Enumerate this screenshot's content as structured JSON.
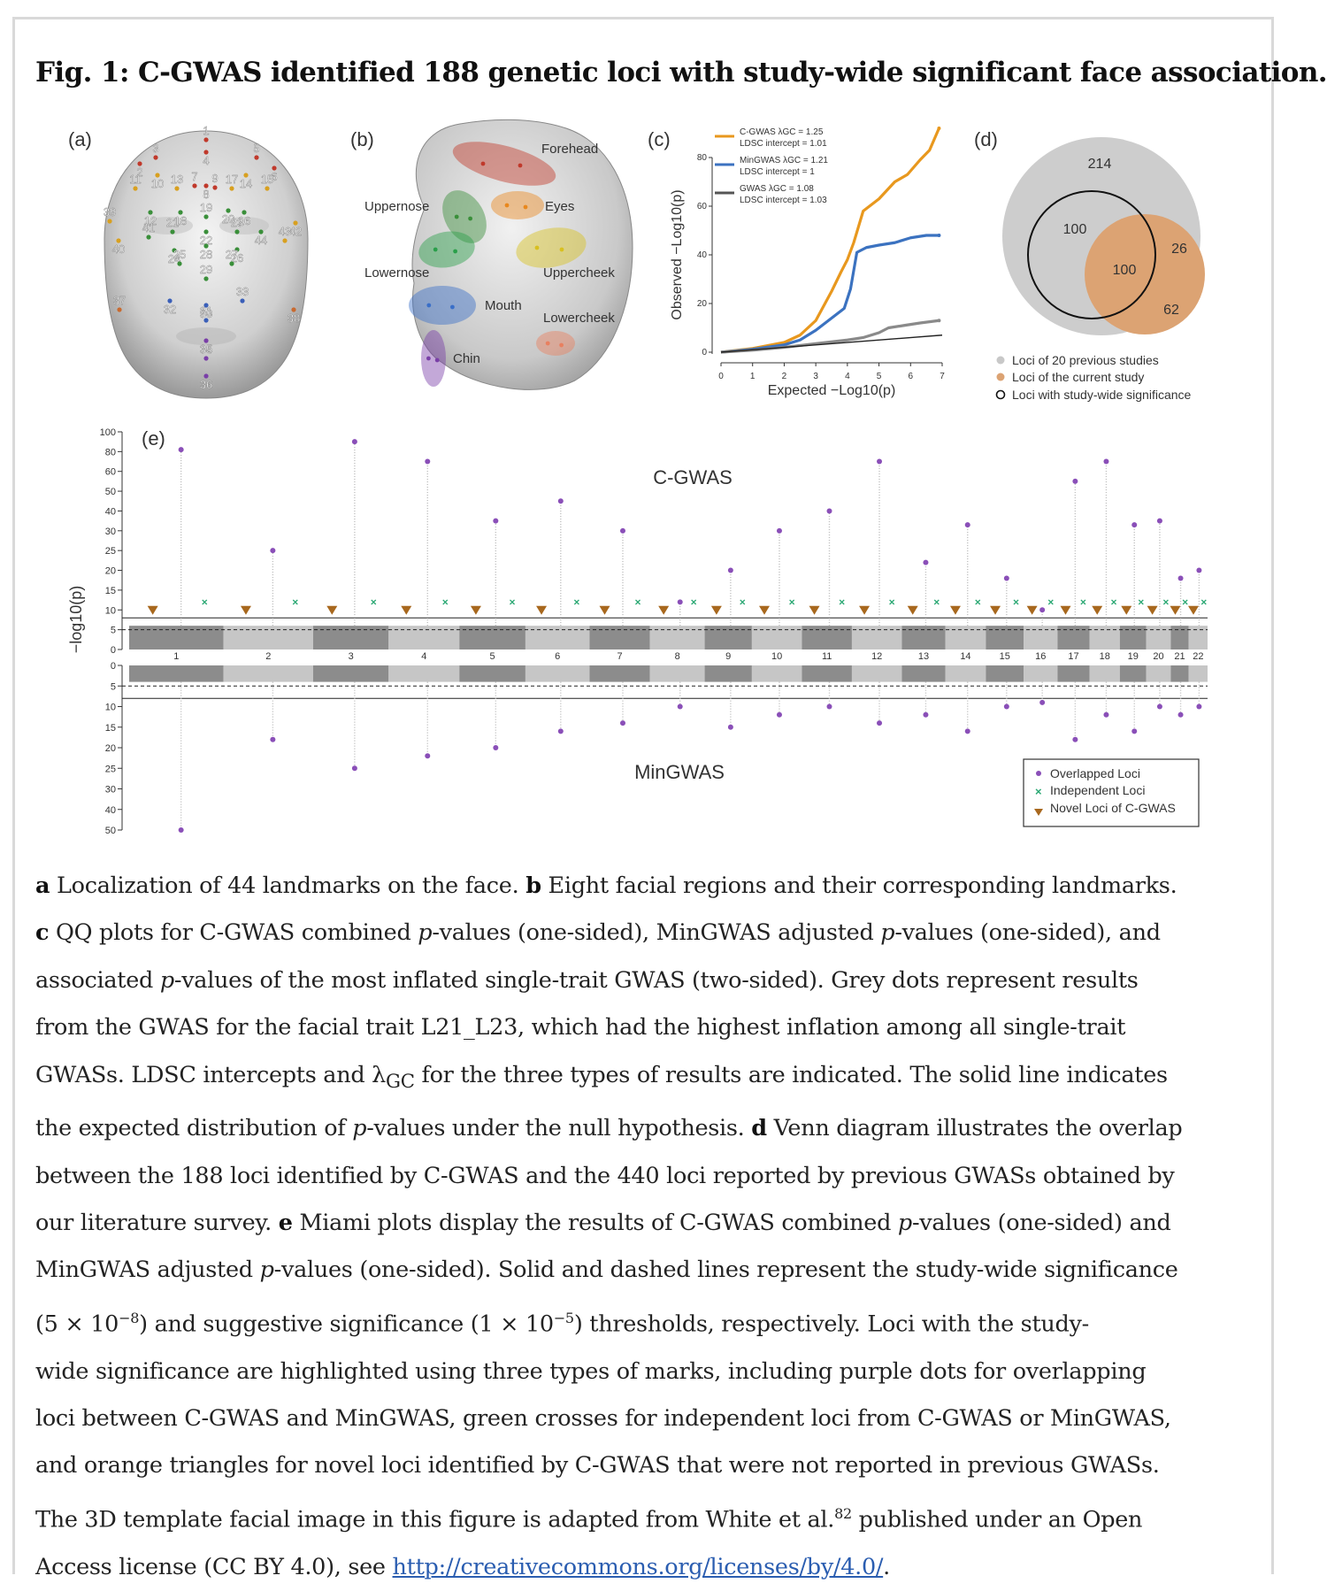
{
  "figure": {
    "title": "Fig. 1: C-GWAS identified 188 genetic loci with study-wide significant face association.",
    "panels": {
      "a": {
        "label": "(a)",
        "landmark_numbers": [
          "1",
          "2",
          "3",
          "4",
          "5",
          "6",
          "7",
          "8",
          "9",
          "10",
          "11",
          "12",
          "13",
          "14",
          "15",
          "16",
          "17",
          "18",
          "19",
          "20",
          "21",
          "22",
          "23",
          "24",
          "25",
          "26",
          "27",
          "28",
          "29",
          "30",
          "31",
          "32",
          "33",
          "34",
          "35",
          "36",
          "37",
          "38",
          "39",
          "40",
          "41",
          "42",
          "43",
          "44"
        ]
      },
      "b": {
        "label": "(b)",
        "regions": [
          "Forehead",
          "Eyes",
          "Uppernose",
          "Lowernose",
          "Uppercheek",
          "Mouth",
          "Lowercheek",
          "Chin"
        ]
      },
      "c": {
        "label": "(c)"
      },
      "d": {
        "label": "(d)",
        "counts": {
          "previous_only": "214",
          "overlap_prev_sig": "100",
          "overlap_all": "100",
          "current_sig_only": "26",
          "current_only": "62"
        },
        "legend": [
          "Loci of 20 previous studies",
          "Loci of the current study",
          "Loci with study-wide significance"
        ]
      },
      "e": {
        "label": "(e)",
        "top_title": "C-GWAS",
        "bottom_title": "MinGWAS",
        "ylabel": "−log10(p)",
        "top_ticks": [
          "100",
          "80",
          "60",
          "50",
          "40",
          "30",
          "25",
          "20",
          "15",
          "10",
          "5",
          "0"
        ],
        "bottom_ticks": [
          "0",
          "5",
          "10",
          "15",
          "20",
          "25",
          "30",
          "40",
          "50"
        ],
        "chromosomes": [
          "1",
          "2",
          "3",
          "4",
          "5",
          "6",
          "7",
          "8",
          "9",
          "10",
          "11",
          "12",
          "13",
          "14",
          "15",
          "16",
          "17",
          "18",
          "19",
          "20",
          "21",
          "22"
        ],
        "legend": [
          "Overlapped Loci",
          "Independent Loci",
          "Novel Loci of C-GWAS"
        ]
      }
    }
  },
  "chart_data": [
    {
      "type": "line",
      "title": "QQ plot",
      "xlabel": "Expected −Log10(p)",
      "ylabel": "Observed −Log10(p)",
      "xlim": [
        0,
        7
      ],
      "ylim": [
        0,
        80
      ],
      "xticks": [
        "0",
        "1",
        "2",
        "3",
        "4",
        "5",
        "6",
        "7"
      ],
      "yticks": [
        "0",
        "20",
        "40",
        "60",
        "80"
      ],
      "legend": [
        {
          "line1": "C-GWAS λGC = 1.25",
          "line2": "LDSC intercept = 1.01",
          "color": "#e8981e"
        },
        {
          "line1": "MinGWAS λGC = 1.21",
          "line2": "LDSC intercept = 1",
          "color": "#3b72c0"
        },
        {
          "line1": "GWAS λGC = 1.08",
          "line2": "LDSC intercept = 1.03",
          "color": "#555555"
        }
      ],
      "series": [
        {
          "name": "C-GWAS",
          "color": "#e8981e",
          "x": [
            0,
            1,
            2,
            2.5,
            3,
            3.5,
            3.8,
            4,
            4.2,
            4.5,
            5,
            5.5,
            5.9,
            6.1,
            6.3,
            6.6,
            6.9
          ],
          "y": [
            0,
            1.5,
            4,
            7,
            13,
            25,
            33,
            38,
            45,
            58,
            63,
            70,
            73,
            76,
            79,
            83,
            92
          ]
        },
        {
          "name": "MinGWAS",
          "color": "#3b72c0",
          "x": [
            0,
            1,
            2,
            2.5,
            3,
            3.5,
            3.9,
            4.1,
            4.3,
            4.6,
            5,
            5.5,
            6,
            6.5,
            6.9
          ],
          "y": [
            0,
            1.2,
            3,
            5,
            9,
            14,
            18,
            26,
            41,
            43,
            44,
            45,
            47,
            48,
            48
          ]
        },
        {
          "name": "GWAS",
          "color": "#8a8a8a",
          "x": [
            0,
            1,
            2,
            3,
            4,
            4.5,
            5,
            5.3,
            5.8,
            6.3,
            6.9
          ],
          "y": [
            0,
            0.8,
            2,
            3.5,
            5,
            6,
            8,
            10,
            11,
            12,
            13
          ]
        },
        {
          "name": "Expected",
          "color": "#222222",
          "x": [
            0,
            7
          ],
          "y": [
            0,
            7
          ]
        }
      ]
    },
    {
      "type": "scatter",
      "title": "Miami plot",
      "categories": [
        "1",
        "2",
        "3",
        "4",
        "5",
        "6",
        "7",
        "8",
        "9",
        "10",
        "11",
        "12",
        "13",
        "14",
        "15",
        "16",
        "17",
        "18",
        "19",
        "20",
        "21",
        "22"
      ],
      "series": [
        {
          "name": "C-GWAS peaks",
          "values": [
            82,
            25,
            90,
            70,
            35,
            45,
            30,
            12,
            20,
            30,
            40,
            70,
            22,
            33,
            18,
            10,
            55,
            70,
            33,
            35,
            18,
            20
          ]
        },
        {
          "name": "MinGWAS peaks",
          "values": [
            50,
            18,
            25,
            22,
            20,
            16,
            14,
            10,
            15,
            12,
            10,
            14,
            12,
            16,
            10,
            9,
            18,
            12,
            16,
            10,
            12,
            10
          ]
        }
      ],
      "thresholds": {
        "study_wide": "5 × 10^-8",
        "suggestive": "1 × 10^-5"
      }
    }
  ],
  "caption": {
    "lines": [
      [
        {
          "b": "a"
        },
        {
          "t": " Localization of 44 landmarks on the face. "
        },
        {
          "b": "b"
        },
        {
          "t": " Eight facial regions and their corresponding landmarks."
        }
      ],
      [
        {
          "b": "c"
        },
        {
          "t": " QQ plots for C-GWAS combined "
        },
        {
          "i": "p"
        },
        {
          "t": "-values (one-sided), MinGWAS adjusted "
        },
        {
          "i": "p"
        },
        {
          "t": "-values (one-sided), and"
        }
      ],
      [
        {
          "t": "associated "
        },
        {
          "i": "p"
        },
        {
          "t": "-values of the most inflated single-trait GWAS (two-sided). Grey dots represent results"
        }
      ],
      [
        {
          "t": "from the GWAS for the facial trait L21_L23, which had the highest inflation among all single-trait"
        }
      ],
      [
        {
          "t": "GWASs. LDSC intercepts and "
        },
        {
          "m": "λ"
        },
        {
          "sub": "GC"
        },
        {
          "t": " for the three types of results are indicated. The solid line indicates"
        }
      ],
      [
        {
          "t": "the expected distribution of "
        },
        {
          "i": "p"
        },
        {
          "t": "-values under the null hypothesis. "
        },
        {
          "b": "d"
        },
        {
          "t": " Venn diagram illustrates the overlap"
        }
      ],
      [
        {
          "t": "between the 188 loci identified by C-GWAS and the 440 loci reported by previous GWASs obtained by"
        }
      ],
      [
        {
          "t": "our literature survey. "
        },
        {
          "b": "e"
        },
        {
          "t": " Miami plots display the results of C-GWAS combined "
        },
        {
          "i": "p"
        },
        {
          "t": "-values (one-sided) and"
        }
      ],
      [
        {
          "t": "MinGWAS adjusted "
        },
        {
          "i": "p"
        },
        {
          "t": "-values (one-sided). Solid and dashed lines represent the study-wide significance"
        }
      ],
      [
        {
          "m": "(5 × 10"
        },
        {
          "sup": "−8"
        },
        {
          "m": ")"
        },
        {
          "t": " and suggestive significance "
        },
        {
          "m": "(1 × 10"
        },
        {
          "sup": "−5"
        },
        {
          "m": ")"
        },
        {
          "t": " thresholds, respectively. Loci with the study-"
        }
      ],
      [
        {
          "t": "wide significance are highlighted using three types of marks, including purple dots for overlapping"
        }
      ],
      [
        {
          "t": "loci between C-GWAS and MinGWAS, green crosses for independent loci from C-GWAS or MinGWAS,"
        }
      ],
      [
        {
          "t": "and orange triangles for novel loci identified by C-GWAS that were not reported in previous GWASs."
        }
      ],
      [
        {
          "t": "The 3D template facial image in this figure is adapted from White et al."
        },
        {
          "sup": "82"
        },
        {
          "t": " published under an Open"
        }
      ],
      [
        {
          "t": "Access license (CC BY 4.0), see "
        },
        {
          "a": "http://creativecommons.org/licenses/by/4.0/"
        },
        {
          "t": "."
        }
      ]
    ]
  }
}
